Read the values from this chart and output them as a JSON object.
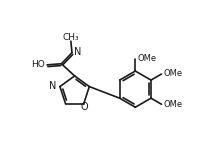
{
  "bg_color": "#ffffff",
  "line_color": "#1a1a1a",
  "line_width": 1.2,
  "font_size_atom": 7.0,
  "font_size_group": 6.0,
  "xlim": [
    -0.5,
    8.5
  ],
  "ylim": [
    1.0,
    7.2
  ]
}
